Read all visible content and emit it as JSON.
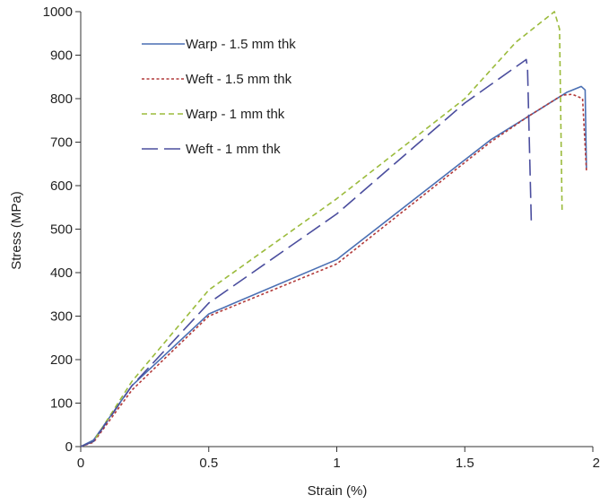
{
  "chart_data": {
    "type": "line",
    "title": "",
    "xlabel": "Strain (%)",
    "ylabel": "Stress (MPa)",
    "xlim": [
      0,
      2
    ],
    "ylim": [
      0,
      1000
    ],
    "xticks": [
      0,
      0.5,
      1,
      1.5,
      2
    ],
    "xtick_labels": [
      "0",
      "0.5",
      "1",
      "1.5",
      "2"
    ],
    "yticks": [
      0,
      100,
      200,
      300,
      400,
      500,
      600,
      700,
      800,
      900,
      1000
    ],
    "ytick_labels": [
      "0",
      "100",
      "200",
      "300",
      "400",
      "500",
      "600",
      "700",
      "800",
      "900",
      "1000"
    ],
    "grid": false,
    "legend_position": "top-left",
    "series": [
      {
        "name": "Warp - 1.5 mm thk",
        "color": "#4a6fb3",
        "dash": "solid",
        "points": [
          [
            0,
            0
          ],
          [
            0.05,
            15
          ],
          [
            0.2,
            140
          ],
          [
            0.5,
            305
          ],
          [
            1.0,
            430
          ],
          [
            1.6,
            705
          ],
          [
            1.75,
            760
          ],
          [
            1.9,
            815
          ],
          [
            1.955,
            828
          ],
          [
            1.97,
            820
          ],
          [
            1.975,
            640
          ]
        ]
      },
      {
        "name": "Weft - 1.5 mm thk",
        "color": "#b23a3a",
        "dash": "short",
        "points": [
          [
            0,
            0
          ],
          [
            0.05,
            10
          ],
          [
            0.2,
            130
          ],
          [
            0.5,
            300
          ],
          [
            1.0,
            420
          ],
          [
            1.6,
            700
          ],
          [
            1.75,
            760
          ],
          [
            1.88,
            808
          ],
          [
            1.92,
            810
          ],
          [
            1.96,
            800
          ],
          [
            1.975,
            635
          ]
        ]
      },
      {
        "name": "Warp - 1 mm thk",
        "color": "#9bbb3c",
        "dash": "medium",
        "points": [
          [
            0,
            0
          ],
          [
            0.05,
            12
          ],
          [
            0.2,
            150
          ],
          [
            0.5,
            360
          ],
          [
            1.0,
            570
          ],
          [
            1.5,
            800
          ],
          [
            1.7,
            930
          ],
          [
            1.85,
            1000
          ],
          [
            1.87,
            960
          ],
          [
            1.88,
            540
          ]
        ]
      },
      {
        "name": "Weft - 1 mm thk",
        "color": "#4b4e9e",
        "dash": "long",
        "points": [
          [
            0,
            0
          ],
          [
            0.05,
            12
          ],
          [
            0.2,
            140
          ],
          [
            0.5,
            330
          ],
          [
            1.0,
            535
          ],
          [
            1.5,
            790
          ],
          [
            1.74,
            890
          ],
          [
            1.745,
            870
          ],
          [
            1.76,
            510
          ]
        ]
      }
    ]
  }
}
